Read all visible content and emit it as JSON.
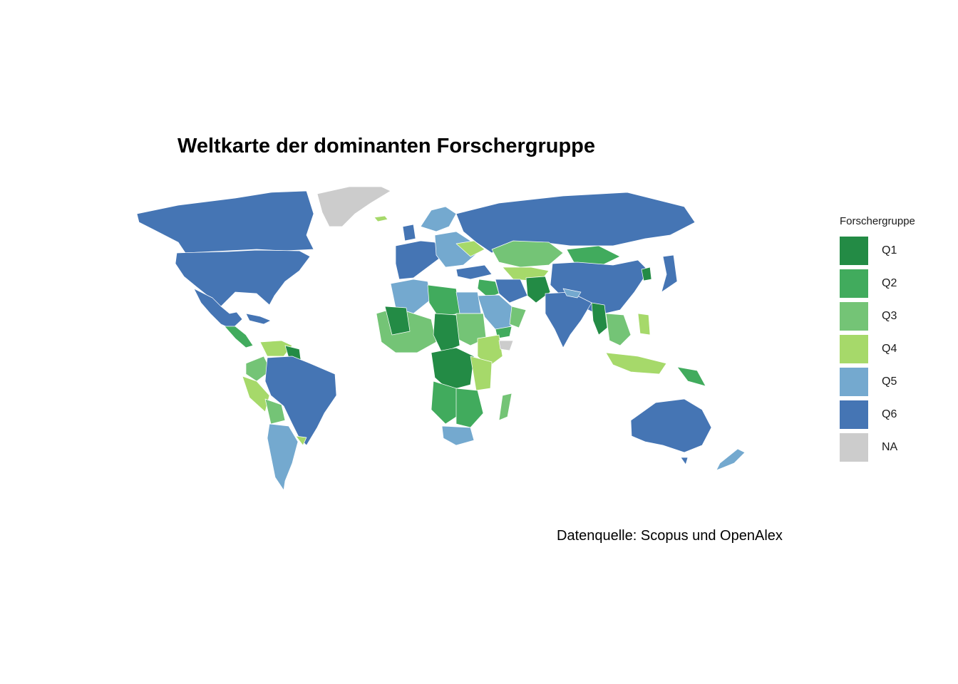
{
  "title": "Weltkarte der dominanten Forschergruppe",
  "caption": "Datenquelle: Scopus und OpenAlex",
  "legend": {
    "title": "Forschergruppe",
    "items": [
      {
        "label": "Q1",
        "color": "#238B45"
      },
      {
        "label": "Q2",
        "color": "#41AB5D"
      },
      {
        "label": "Q3",
        "color": "#74C476"
      },
      {
        "label": "Q4",
        "color": "#A6D96A"
      },
      {
        "label": "Q5",
        "color": "#74A9CF"
      },
      {
        "label": "Q6",
        "color": "#4575B4"
      },
      {
        "label": "NA",
        "color": "#CCCCCC"
      }
    ]
  }
}
